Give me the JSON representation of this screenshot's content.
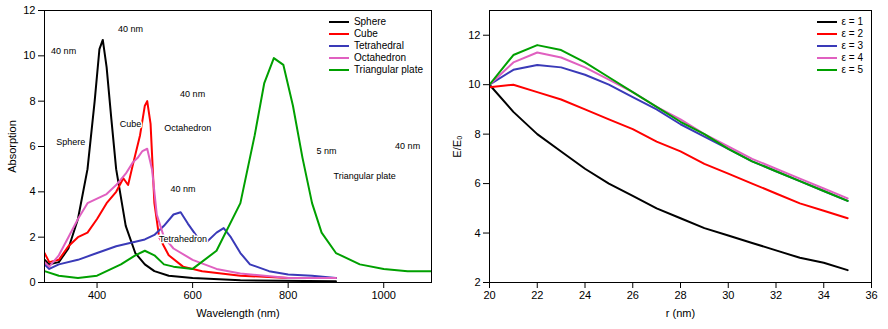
{
  "chart_data": [
    {
      "type": "line",
      "x_label": "Wavelength (nm)",
      "y_label": "Absorption",
      "xlim": [
        290,
        1100
      ],
      "ylim": [
        0,
        12
      ],
      "xticks": [
        400,
        600,
        800,
        1000
      ],
      "yticks": [
        0,
        2,
        4,
        6,
        8,
        10,
        12
      ],
      "grid": false,
      "legend": "top-right",
      "series": [
        {
          "name": "Sphere",
          "color": "#000000",
          "x": [
            290,
            300,
            320,
            340,
            360,
            380,
            395,
            405,
            412,
            420,
            430,
            440,
            460,
            480,
            500,
            520,
            550,
            600,
            700,
            900
          ],
          "values": [
            1.0,
            0.8,
            0.9,
            1.5,
            2.8,
            5.0,
            8.0,
            10.3,
            10.7,
            9.5,
            7.2,
            5.0,
            2.5,
            1.3,
            0.8,
            0.5,
            0.3,
            0.2,
            0.1,
            0.05
          ]
        },
        {
          "name": "Cube",
          "color": "#ff0000",
          "x": [
            290,
            300,
            320,
            340,
            360,
            380,
            400,
            420,
            440,
            455,
            465,
            475,
            490,
            500,
            505,
            512,
            520,
            530,
            550,
            580,
            620,
            700,
            800,
            900
          ],
          "values": [
            1.3,
            0.9,
            1.0,
            1.6,
            2.0,
            2.2,
            2.8,
            3.5,
            4.0,
            4.6,
            4.3,
            5.2,
            6.5,
            7.8,
            8.0,
            7.0,
            3.5,
            2.0,
            1.2,
            0.7,
            0.5,
            0.3,
            0.2,
            0.2
          ]
        },
        {
          "name": "Tetrahedral",
          "color": "#3a3ab8",
          "x": [
            290,
            300,
            320,
            360,
            400,
            440,
            480,
            500,
            520,
            540,
            560,
            575,
            590,
            610,
            630,
            650,
            665,
            680,
            700,
            720,
            760,
            800,
            850,
            900
          ],
          "values": [
            0.8,
            0.6,
            0.8,
            1.0,
            1.3,
            1.6,
            1.8,
            1.9,
            2.1,
            2.5,
            3.0,
            3.1,
            2.6,
            2.0,
            1.8,
            2.2,
            2.4,
            2.0,
            1.3,
            0.8,
            0.5,
            0.35,
            0.3,
            0.2
          ]
        },
        {
          "name": "Octahedron",
          "color": "#e060c0",
          "x": [
            290,
            300,
            320,
            340,
            360,
            380,
            400,
            420,
            440,
            460,
            475,
            485,
            495,
            505,
            515,
            525,
            540,
            560,
            600,
            650,
            700,
            800,
            900
          ],
          "values": [
            0.9,
            0.7,
            1.2,
            2.0,
            2.8,
            3.5,
            3.7,
            3.9,
            4.3,
            4.8,
            5.3,
            5.5,
            5.8,
            5.9,
            5.0,
            3.0,
            2.0,
            1.5,
            1.0,
            0.6,
            0.4,
            0.2,
            0.2
          ]
        },
        {
          "name": "Triangular plate",
          "color": "#00a000",
          "x": [
            290,
            320,
            360,
            400,
            450,
            480,
            500,
            520,
            540,
            560,
            600,
            650,
            700,
            730,
            750,
            770,
            790,
            810,
            830,
            850,
            870,
            900,
            950,
            1000,
            1050,
            1100
          ],
          "values": [
            0.5,
            0.3,
            0.2,
            0.3,
            0.8,
            1.2,
            1.4,
            1.2,
            0.8,
            0.7,
            0.6,
            1.4,
            3.5,
            6.5,
            8.8,
            9.9,
            9.6,
            7.8,
            5.5,
            3.5,
            2.2,
            1.3,
            0.8,
            0.6,
            0.5,
            0.5
          ]
        }
      ],
      "annotations": [
        {
          "text": "40 nm",
          "x": 330,
          "y": 10.2
        },
        {
          "text": "Sphere",
          "x": 345,
          "y": 6.2
        },
        {
          "text": "40 nm",
          "x": 470,
          "y": 11.2
        },
        {
          "text": "Cube",
          "x": 470,
          "y": 7.0
        },
        {
          "text": "40 nm",
          "x": 600,
          "y": 8.3
        },
        {
          "text": "Octahedron",
          "x": 590,
          "y": 6.8
        },
        {
          "text": "40 nm",
          "x": 580,
          "y": 4.1
        },
        {
          "text": "Tetrahedron",
          "x": 580,
          "y": 1.9
        },
        {
          "text": "5 nm",
          "x": 880,
          "y": 5.8
        },
        {
          "text": "40 nm",
          "x": 1050,
          "y": 6.0
        },
        {
          "text": "Triangular plate",
          "x": 960,
          "y": 4.7
        }
      ]
    },
    {
      "type": "line",
      "x_label": "r (nm)",
      "y_label": "E/E₀",
      "xlim": [
        20,
        36
      ],
      "ylim": [
        2,
        13
      ],
      "xticks": [
        20,
        22,
        24,
        26,
        28,
        30,
        32,
        34,
        36
      ],
      "yticks": [
        2,
        4,
        6,
        8,
        10,
        12
      ],
      "grid": false,
      "legend": "top-right",
      "series": [
        {
          "name": "ε = 1",
          "color": "#000000",
          "x": [
            20,
            21,
            22,
            23,
            24,
            25,
            26,
            27,
            28,
            29,
            30,
            31,
            32,
            33,
            34,
            35
          ],
          "values": [
            10.0,
            8.9,
            8.0,
            7.3,
            6.6,
            6.0,
            5.5,
            5.0,
            4.6,
            4.2,
            3.9,
            3.6,
            3.3,
            3.0,
            2.8,
            2.5
          ]
        },
        {
          "name": "ε = 2",
          "color": "#ff0000",
          "x": [
            20,
            21,
            22,
            23,
            24,
            25,
            26,
            27,
            28,
            29,
            30,
            31,
            32,
            33,
            34,
            35
          ],
          "values": [
            9.9,
            10.0,
            9.7,
            9.4,
            9.0,
            8.6,
            8.2,
            7.7,
            7.3,
            6.8,
            6.4,
            6.0,
            5.6,
            5.2,
            4.9,
            4.6
          ]
        },
        {
          "name": "ε = 3",
          "color": "#3a3ab8",
          "x": [
            20,
            21,
            22,
            23,
            24,
            25,
            26,
            27,
            28,
            29,
            30,
            31,
            32,
            33,
            34,
            35
          ],
          "values": [
            10.0,
            10.6,
            10.8,
            10.7,
            10.4,
            10.0,
            9.5,
            9.0,
            8.4,
            7.9,
            7.4,
            6.9,
            6.5,
            6.1,
            5.7,
            5.3
          ]
        },
        {
          "name": "ε = 4",
          "color": "#e060c0",
          "x": [
            20,
            21,
            22,
            23,
            24,
            25,
            26,
            27,
            28,
            29,
            30,
            31,
            32,
            33,
            34,
            35
          ],
          "values": [
            10.0,
            10.9,
            11.3,
            11.1,
            10.7,
            10.2,
            9.7,
            9.1,
            8.6,
            8.0,
            7.5,
            7.0,
            6.6,
            6.2,
            5.8,
            5.4
          ]
        },
        {
          "name": "ε = 5",
          "color": "#00a000",
          "x": [
            20,
            21,
            22,
            23,
            24,
            25,
            26,
            27,
            28,
            29,
            30,
            31,
            32,
            33,
            34,
            35
          ],
          "values": [
            10.0,
            11.2,
            11.6,
            11.4,
            10.9,
            10.3,
            9.7,
            9.1,
            8.5,
            8.0,
            7.4,
            6.9,
            6.5,
            6.1,
            5.7,
            5.3
          ]
        }
      ]
    }
  ]
}
